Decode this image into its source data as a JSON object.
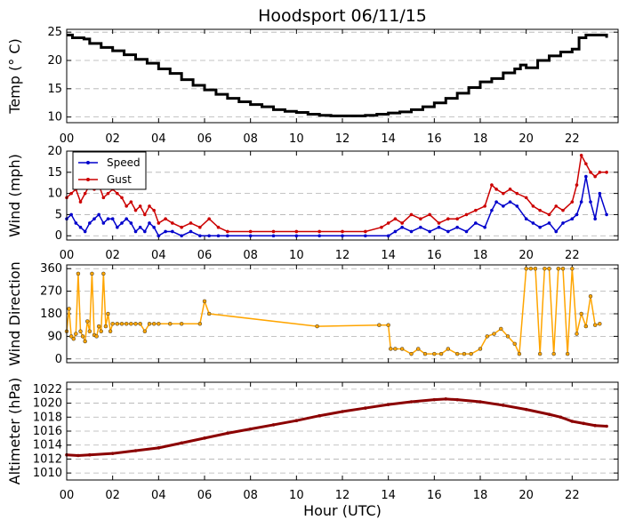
{
  "title": "Hoodsport 06/11/15",
  "xlabel": "Hour (UTC)",
  "colors": {
    "temp": "#000000",
    "speed": "#0000cc",
    "gust": "#cc0000",
    "direction": "#ffa500",
    "altimeter": "#8b0000"
  },
  "chart_data": [
    {
      "type": "line",
      "panel": "temperature",
      "ylabel": "Temp (° C)",
      "xlim": [
        0,
        24
      ],
      "ylim": [
        9,
        25.5
      ],
      "yticks": [
        10,
        15,
        20,
        25
      ],
      "xtick_labels": [
        "00",
        "02",
        "04",
        "06",
        "08",
        "10",
        "12",
        "14",
        "16",
        "18",
        "20",
        "22"
      ],
      "grid": true,
      "series": [
        {
          "color": "#000000",
          "x": [
            0,
            0.25,
            0.5,
            0.75,
            1,
            1.5,
            2,
            2.5,
            3,
            3.5,
            4,
            4.5,
            5,
            5.5,
            6,
            6.5,
            7,
            7.5,
            8,
            8.5,
            9,
            9.5,
            10,
            10.5,
            11,
            11.5,
            12,
            12.5,
            13,
            13.5,
            14,
            14.5,
            15,
            15.5,
            16,
            16.5,
            17,
            17.5,
            18,
            18.5,
            19,
            19.5,
            19.75,
            20,
            20.5,
            21,
            21.5,
            22,
            22.3,
            22.6,
            23,
            23.5
          ],
          "y": [
            24.5,
            24,
            24,
            23.8,
            23,
            22.3,
            21.7,
            21,
            20.2,
            19.5,
            18.5,
            17.7,
            16.6,
            15.6,
            14.8,
            14,
            13.3,
            12.7,
            12.2,
            11.8,
            11.3,
            11,
            10.8,
            10.5,
            10.3,
            10.2,
            10.2,
            10.2,
            10.3,
            10.5,
            10.7,
            10.9,
            11.3,
            11.8,
            12.5,
            13.3,
            14.2,
            15.2,
            16.2,
            16.8,
            17.8,
            18.5,
            19.2,
            18.7,
            20,
            20.8,
            21.5,
            22,
            24,
            24.5,
            24.5,
            24
          ]
        }
      ]
    },
    {
      "type": "line",
      "panel": "wind",
      "ylabel": "Wind (mph)",
      "xlim": [
        0,
        24
      ],
      "ylim": [
        -1,
        20
      ],
      "yticks": [
        0,
        5,
        10,
        15,
        20
      ],
      "xtick_labels": [
        "00",
        "02",
        "04",
        "06",
        "08",
        "10",
        "12",
        "14",
        "16",
        "18",
        "20",
        "22"
      ],
      "grid": true,
      "legend_position": "top-left",
      "series": [
        {
          "name": "Speed",
          "color": "#0000cc",
          "x": [
            0,
            0.2,
            0.4,
            0.6,
            0.8,
            1,
            1.2,
            1.4,
            1.6,
            1.8,
            2,
            2.2,
            2.4,
            2.6,
            2.8,
            3,
            3.2,
            3.4,
            3.6,
            3.8,
            4,
            4.3,
            4.6,
            5,
            5.4,
            5.8,
            6.2,
            6.6,
            7,
            8,
            9,
            10,
            11,
            12,
            13,
            14,
            14.3,
            14.6,
            15,
            15.4,
            15.8,
            16.2,
            16.6,
            17,
            17.4,
            17.8,
            18.2,
            18.5,
            18.7,
            19,
            19.3,
            19.6,
            20,
            20.3,
            20.6,
            21,
            21.3,
            21.6,
            22,
            22.2,
            22.4,
            22.6,
            22.8,
            23,
            23.2,
            23.5
          ],
          "y": [
            4,
            5,
            3,
            2,
            1,
            3,
            4,
            5,
            3,
            4,
            4,
            2,
            3,
            4,
            3,
            1,
            2,
            1,
            3,
            2,
            0,
            1,
            1,
            0,
            1,
            0,
            0,
            0,
            0,
            0,
            0,
            0,
            0,
            0,
            0,
            0,
            1,
            2,
            1,
            2,
            1,
            2,
            1,
            2,
            1,
            3,
            2,
            6,
            8,
            7,
            8,
            7,
            4,
            3,
            2,
            3,
            1,
            3,
            4,
            5,
            8,
            14,
            8,
            4,
            10,
            5
          ]
        },
        {
          "name": "Gust",
          "color": "#cc0000",
          "x": [
            0,
            0.2,
            0.4,
            0.6,
            0.8,
            1,
            1.2,
            1.4,
            1.6,
            1.8,
            2,
            2.2,
            2.4,
            2.6,
            2.8,
            3,
            3.2,
            3.4,
            3.6,
            3.8,
            4,
            4.3,
            4.6,
            5,
            5.4,
            5.8,
            6.2,
            6.6,
            7,
            8,
            9,
            10,
            11,
            12,
            13,
            13.7,
            14,
            14.3,
            14.6,
            15,
            15.4,
            15.8,
            16.2,
            16.6,
            17,
            17.4,
            17.8,
            18.2,
            18.5,
            18.7,
            19,
            19.3,
            19.6,
            20,
            20.3,
            20.6,
            21,
            21.3,
            21.6,
            22,
            22.2,
            22.4,
            22.6,
            22.8,
            23,
            23.2,
            23.5
          ],
          "y": [
            9,
            10,
            11,
            8,
            10,
            12,
            11,
            12,
            9,
            10,
            11,
            10,
            9,
            7,
            8,
            6,
            7,
            5,
            7,
            6,
            3,
            4,
            3,
            2,
            3,
            2,
            4,
            2,
            1,
            1,
            1,
            1,
            1,
            1,
            1,
            2,
            3,
            4,
            3,
            5,
            4,
            5,
            3,
            4,
            4,
            5,
            6,
            7,
            12,
            11,
            10,
            11,
            10,
            9,
            7,
            6,
            5,
            7,
            6,
            8,
            12,
            19,
            17,
            15,
            14,
            15,
            15
          ]
        }
      ]
    },
    {
      "type": "scatter",
      "panel": "wind_direction",
      "ylabel": "Wind Direction",
      "xlim": [
        0,
        24
      ],
      "ylim": [
        -15,
        375
      ],
      "yticks": [
        0,
        90,
        180,
        270,
        360
      ],
      "xtick_labels": [
        "00",
        "02",
        "04",
        "06",
        "08",
        "10",
        "12",
        "14",
        "16",
        "18",
        "20",
        "22"
      ],
      "grid": true,
      "series": [
        {
          "color": "#ffa500",
          "x": [
            0,
            0.1,
            0.2,
            0.3,
            0.4,
            0.5,
            0.6,
            0.7,
            0.8,
            0.9,
            1,
            1.1,
            1.2,
            1.3,
            1.4,
            1.5,
            1.6,
            1.7,
            1.8,
            1.9,
            2,
            2.2,
            2.4,
            2.6,
            2.8,
            3,
            3.2,
            3.4,
            3.6,
            3.8,
            4,
            4.5,
            5,
            5.8,
            6,
            6.2,
            10.9,
            13.6,
            14,
            14.1,
            14.3,
            14.6,
            15,
            15.3,
            15.6,
            16,
            16.3,
            16.6,
            17,
            17.3,
            17.6,
            18,
            18.3,
            18.6,
            18.9,
            19.2,
            19.5,
            19.7,
            20,
            20.2,
            20.4,
            20.6,
            20.8,
            21,
            21.2,
            21.4,
            21.6,
            21.8,
            22,
            22.2,
            22.4,
            22.6,
            22.8,
            23,
            23.2
          ],
          "y": [
            110,
            200,
            90,
            80,
            100,
            340,
            110,
            90,
            70,
            150,
            110,
            340,
            95,
            90,
            130,
            110,
            340,
            130,
            180,
            110,
            140,
            140,
            140,
            140,
            140,
            140,
            140,
            110,
            140,
            140,
            140,
            140,
            140,
            140,
            230,
            180,
            130,
            135,
            135,
            40,
            40,
            40,
            20,
            40,
            20,
            20,
            20,
            40,
            20,
            20,
            20,
            40,
            90,
            100,
            120,
            90,
            60,
            20,
            360,
            360,
            360,
            20,
            360,
            360,
            20,
            360,
            360,
            20,
            360,
            100,
            180,
            130,
            250,
            135,
            140
          ]
        }
      ]
    },
    {
      "type": "line",
      "panel": "altimeter",
      "ylabel": "Altimeter (hPa)",
      "xlim": [
        0,
        24
      ],
      "ylim": [
        1009,
        1023
      ],
      "yticks": [
        1010,
        1012,
        1014,
        1016,
        1018,
        1020,
        1022
      ],
      "xtick_labels": [
        "00",
        "02",
        "04",
        "06",
        "08",
        "10",
        "12",
        "14",
        "16",
        "18",
        "20",
        "22"
      ],
      "grid": true,
      "series": [
        {
          "color": "#8b0000",
          "x": [
            0,
            0.5,
            1,
            2,
            3,
            4,
            5,
            6,
            7,
            8,
            9,
            10,
            11,
            12,
            13,
            14,
            15,
            16,
            16.5,
            17,
            18,
            19,
            20,
            21,
            21.5,
            22,
            22.5,
            23,
            23.5
          ],
          "y": [
            1012.6,
            1012.5,
            1012.6,
            1012.8,
            1013.2,
            1013.6,
            1014.3,
            1015,
            1015.7,
            1016.3,
            1016.9,
            1017.5,
            1018.2,
            1018.8,
            1019.3,
            1019.8,
            1020.2,
            1020.5,
            1020.6,
            1020.5,
            1020.2,
            1019.7,
            1019.1,
            1018.4,
            1018,
            1017.4,
            1017.1,
            1016.8,
            1016.7
          ]
        }
      ]
    }
  ]
}
